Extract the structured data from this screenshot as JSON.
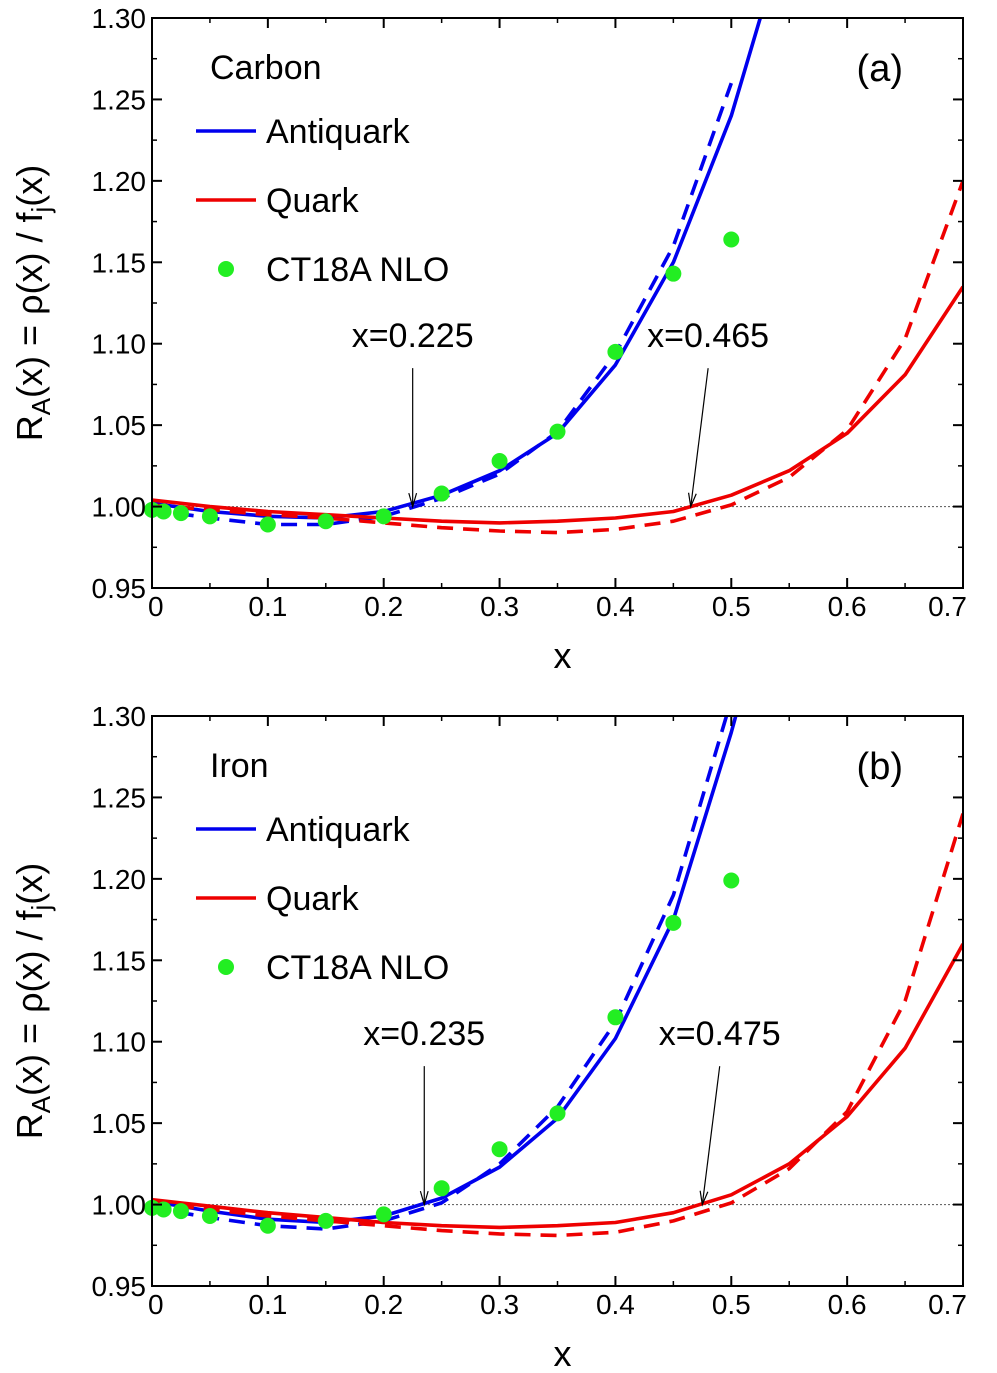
{
  "colors": {
    "antiquark": "#0000ee",
    "quark": "#ee0000",
    "ct18a": "#22ee22",
    "axis": "#000000",
    "reference_line": "#555555"
  },
  "chart_data": [
    {
      "type": "line",
      "panel_tag": "(a)",
      "title": "Carbon",
      "xlabel": "x",
      "ylabel": "R_A(x) = ρ(x) / f_j(x)",
      "xlim": [
        0,
        0.7
      ],
      "ylim": [
        0.95,
        1.3
      ],
      "xticks": [
        "0",
        "0.1",
        "0.2",
        "0.3",
        "0.4",
        "0.5",
        "0.6",
        "0.7"
      ],
      "yticks": [
        "0.95",
        "1.00",
        "1.05",
        "1.10",
        "1.15",
        "1.20",
        "1.25",
        "1.30"
      ],
      "legend": [
        {
          "label": "Antiquark",
          "kind": "line",
          "color": "#0000ee"
        },
        {
          "label": "Quark",
          "kind": "line",
          "color": "#ee0000"
        },
        {
          "label": "CT18A NLO",
          "kind": "marker",
          "color": "#22ee22"
        }
      ],
      "series": [
        {
          "color": "#0000ee",
          "style": "solid",
          "x": [
            0,
            0.05,
            0.1,
            0.15,
            0.2,
            0.25,
            0.3,
            0.35,
            0.4,
            0.45,
            0.5,
            0.55
          ],
          "y": [
            1.002,
            0.997,
            0.994,
            0.993,
            0.997,
            1.007,
            1.022,
            1.045,
            1.087,
            1.15,
            1.24,
            1.36
          ]
        },
        {
          "color": "#0000ee",
          "style": "dashed",
          "x": [
            0,
            0.05,
            0.1,
            0.15,
            0.2,
            0.25,
            0.3,
            0.35,
            0.4,
            0.45,
            0.5
          ],
          "y": [
            0.998,
            0.993,
            0.989,
            0.989,
            0.994,
            1.005,
            1.02,
            1.046,
            1.094,
            1.16,
            1.26
          ]
        },
        {
          "color": "#ee0000",
          "style": "solid",
          "x": [
            0,
            0.05,
            0.1,
            0.15,
            0.2,
            0.25,
            0.3,
            0.35,
            0.4,
            0.45,
            0.5,
            0.55,
            0.6,
            0.65,
            0.7
          ],
          "y": [
            1.004,
            1.0,
            0.997,
            0.995,
            0.993,
            0.991,
            0.99,
            0.991,
            0.993,
            0.997,
            1.007,
            1.022,
            1.045,
            1.081,
            1.135
          ]
        },
        {
          "color": "#ee0000",
          "style": "dashed",
          "x": [
            0,
            0.05,
            0.1,
            0.15,
            0.2,
            0.25,
            0.3,
            0.35,
            0.4,
            0.45,
            0.5,
            0.55,
            0.6,
            0.65,
            0.7
          ],
          "y": [
            1.001,
            0.998,
            0.995,
            0.993,
            0.99,
            0.987,
            0.985,
            0.984,
            0.986,
            0.991,
            1.001,
            1.018,
            1.047,
            1.103,
            1.2
          ]
        }
      ],
      "points": {
        "color": "#22ee22",
        "x": [
          0,
          0.01,
          0.025,
          0.05,
          0.1,
          0.15,
          0.2,
          0.25,
          0.3,
          0.35,
          0.4,
          0.45,
          0.5
        ],
        "y": [
          0.998,
          0.997,
          0.996,
          0.994,
          0.989,
          0.991,
          0.994,
          1.008,
          1.028,
          1.046,
          1.095,
          1.143,
          1.164
        ]
      },
      "reference_y": 1.0,
      "annotations": [
        {
          "text": "x=0.225",
          "x": 0.225,
          "text_x": 0.225,
          "text_y": 1.098,
          "arrow_from_y": 1.085
        },
        {
          "text": "x=0.465",
          "x": 0.465,
          "text_x": 0.48,
          "text_y": 1.098,
          "arrow_from_y": 1.085
        }
      ]
    },
    {
      "type": "line",
      "panel_tag": "(b)",
      "title": "Iron",
      "xlabel": "x",
      "ylabel": "R_A(x) = ρ(x) / f_j(x)",
      "xlim": [
        0,
        0.7
      ],
      "ylim": [
        0.95,
        1.3
      ],
      "xticks": [
        "0",
        "0.1",
        "0.2",
        "0.3",
        "0.4",
        "0.5",
        "0.6",
        "0.7"
      ],
      "yticks": [
        "0.95",
        "1.00",
        "1.05",
        "1.10",
        "1.15",
        "1.20",
        "1.25",
        "1.30"
      ],
      "legend": [
        {
          "label": "Antiquark",
          "kind": "line",
          "color": "#0000ee"
        },
        {
          "label": "Quark",
          "kind": "line",
          "color": "#ee0000"
        },
        {
          "label": "CT18A NLO",
          "kind": "marker",
          "color": "#22ee22"
        }
      ],
      "series": [
        {
          "color": "#0000ee",
          "style": "solid",
          "x": [
            0,
            0.05,
            0.1,
            0.15,
            0.2,
            0.25,
            0.3,
            0.35,
            0.4,
            0.45,
            0.5,
            0.55
          ],
          "y": [
            1.002,
            0.996,
            0.991,
            0.989,
            0.993,
            1.004,
            1.023,
            1.053,
            1.102,
            1.175,
            1.29,
            1.42
          ]
        },
        {
          "color": "#0000ee",
          "style": "dashed",
          "x": [
            0,
            0.05,
            0.1,
            0.15,
            0.2,
            0.25,
            0.3,
            0.35,
            0.4,
            0.45,
            0.5
          ],
          "y": [
            0.998,
            0.992,
            0.987,
            0.985,
            0.99,
            1.001,
            1.025,
            1.06,
            1.112,
            1.19,
            1.31
          ]
        },
        {
          "color": "#ee0000",
          "style": "solid",
          "x": [
            0,
            0.05,
            0.1,
            0.15,
            0.2,
            0.25,
            0.3,
            0.35,
            0.4,
            0.45,
            0.5,
            0.55,
            0.6,
            0.65,
            0.7
          ],
          "y": [
            1.003,
            0.999,
            0.995,
            0.992,
            0.989,
            0.987,
            0.986,
            0.987,
            0.989,
            0.995,
            1.006,
            1.025,
            1.054,
            1.096,
            1.16
          ]
        },
        {
          "color": "#ee0000",
          "style": "dashed",
          "x": [
            0,
            0.05,
            0.1,
            0.15,
            0.2,
            0.25,
            0.3,
            0.35,
            0.4,
            0.45,
            0.5,
            0.55,
            0.6,
            0.65,
            0.7
          ],
          "y": [
            1.001,
            0.997,
            0.993,
            0.99,
            0.987,
            0.984,
            0.982,
            0.981,
            0.983,
            0.99,
            1.001,
            1.022,
            1.057,
            1.125,
            1.24
          ]
        }
      ],
      "points": {
        "color": "#22ee22",
        "x": [
          0,
          0.01,
          0.025,
          0.05,
          0.1,
          0.15,
          0.2,
          0.25,
          0.3,
          0.35,
          0.4,
          0.45,
          0.5
        ],
        "y": [
          0.998,
          0.997,
          0.996,
          0.993,
          0.987,
          0.99,
          0.994,
          1.01,
          1.034,
          1.056,
          1.115,
          1.173,
          1.199
        ]
      },
      "reference_y": 1.0,
      "annotations": [
        {
          "text": "x=0.235",
          "x": 0.235,
          "text_x": 0.235,
          "text_y": 1.098,
          "arrow_from_y": 1.085
        },
        {
          "text": "x=0.475",
          "x": 0.475,
          "text_x": 0.49,
          "text_y": 1.098,
          "arrow_from_y": 1.085
        }
      ]
    }
  ]
}
